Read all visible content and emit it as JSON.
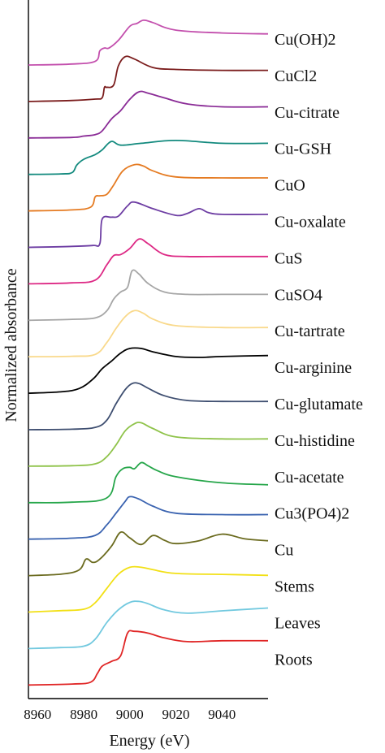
{
  "chart_data": {
    "type": "line",
    "title": "",
    "xlabel": "Energy (eV)",
    "ylabel": "Normalized absorbance",
    "xlim": [
      8956,
      9060
    ],
    "xticks": [
      8960,
      8980,
      9000,
      9020,
      9040
    ],
    "yticks": [],
    "grid": false,
    "legend": "labels at right end of each stacked trace",
    "series": [
      {
        "name": "Cu(OH)2",
        "color": "#c34fad",
        "baseline": 0.0,
        "x": [
          8956,
          8975,
          8985,
          8987,
          8989,
          8991,
          8995,
          9000,
          9003,
          9006,
          9010,
          9020,
          9040,
          9060
        ],
        "values": [
          0.0,
          0.02,
          0.08,
          0.3,
          0.36,
          0.36,
          0.52,
          0.82,
          0.88,
          0.95,
          0.9,
          0.74,
          0.68,
          0.66
        ]
      },
      {
        "name": "CuCl2",
        "color": "#7b1d1d",
        "baseline": 0.0,
        "x": [
          8956,
          8975,
          8985,
          8988,
          8989,
          8990,
          8993,
          8995,
          8998,
          9002,
          9010,
          9020,
          9040,
          9060
        ],
        "values": [
          0.0,
          0.02,
          0.05,
          0.08,
          0.3,
          0.3,
          0.35,
          0.75,
          0.95,
          0.9,
          0.72,
          0.68,
          0.66,
          0.66
        ]
      },
      {
        "name": "Cu-citrate",
        "color": "#8a2b96",
        "baseline": 0.0,
        "x": [
          8956,
          8975,
          8980,
          8985,
          8988,
          8992,
          8996,
          9000,
          9004,
          9008,
          9015,
          9025,
          9040,
          9060
        ],
        "values": [
          0.0,
          0.01,
          0.04,
          0.07,
          0.15,
          0.4,
          0.58,
          0.82,
          0.98,
          0.95,
          0.85,
          0.72,
          0.66,
          0.66
        ]
      },
      {
        "name": "Cu-GSH",
        "color": "#138a7e",
        "baseline": 0.0,
        "x": [
          8956,
          8970,
          8975,
          8977,
          8980,
          8985,
          8988,
          8992,
          8996,
          9005,
          9020,
          9040,
          9060
        ],
        "values": [
          0.0,
          0.01,
          0.04,
          0.2,
          0.32,
          0.42,
          0.52,
          0.7,
          0.62,
          0.66,
          0.72,
          0.66,
          0.66
        ]
      },
      {
        "name": "CuO",
        "color": "#e57b22",
        "baseline": 0.0,
        "x": [
          8956,
          8975,
          8983,
          8985,
          8987,
          8990,
          8993,
          8997,
          9002,
          9006,
          9010,
          9020,
          9040,
          9060
        ],
        "values": [
          0.0,
          0.02,
          0.08,
          0.3,
          0.32,
          0.35,
          0.55,
          0.85,
          0.98,
          0.95,
          0.85,
          0.72,
          0.7,
          0.7
        ]
      },
      {
        "name": "Cu-oxalate",
        "color": "#6d3da3",
        "baseline": 0.0,
        "x": [
          8956,
          8975,
          8984,
          8987,
          8988,
          8992,
          8995,
          8999,
          9002,
          9010,
          9020,
          9025,
          9030,
          9034,
          9040,
          9060
        ],
        "values": [
          0.0,
          0.02,
          0.04,
          0.08,
          0.6,
          0.64,
          0.66,
          0.88,
          0.96,
          0.82,
          0.68,
          0.72,
          0.82,
          0.74,
          0.7,
          0.7
        ]
      },
      {
        "name": "CuS",
        "color": "#dd2985",
        "baseline": 0.0,
        "x": [
          8956,
          8975,
          8985,
          8990,
          8993,
          8996,
          9000,
          9004,
          9008,
          9015,
          9025,
          9040,
          9060
        ],
        "values": [
          0.0,
          0.02,
          0.08,
          0.4,
          0.6,
          0.62,
          0.75,
          0.95,
          0.85,
          0.62,
          0.58,
          0.58,
          0.58
        ]
      },
      {
        "name": "CuSO4",
        "color": "#a6a6a6",
        "baseline": 0.0,
        "x": [
          8956,
          8975,
          8985,
          8990,
          8993,
          8996,
          8999,
          9001,
          9004,
          9008,
          9015,
          9025,
          9040,
          9060
        ],
        "values": [
          0.0,
          0.02,
          0.05,
          0.2,
          0.45,
          0.6,
          0.7,
          1.05,
          0.98,
          0.78,
          0.6,
          0.55,
          0.55,
          0.55
        ]
      },
      {
        "name": "Cu-tartrate",
        "color": "#f9d98b",
        "baseline": 0.0,
        "x": [
          8956,
          8975,
          8985,
          8990,
          8994,
          8998,
          9002,
          9006,
          9010,
          9020,
          9040,
          9060
        ],
        "values": [
          0.0,
          0.01,
          0.05,
          0.3,
          0.6,
          0.85,
          0.98,
          0.92,
          0.8,
          0.66,
          0.62,
          0.62
        ]
      },
      {
        "name": "Cu-arginine",
        "color": "#000000",
        "baseline": 0.0,
        "x": [
          8956,
          8970,
          8978,
          8984,
          8988,
          8992,
          8996,
          9000,
          9005,
          9010,
          9020,
          9030,
          9040,
          9060
        ],
        "values": [
          0.0,
          0.03,
          0.1,
          0.3,
          0.52,
          0.68,
          0.85,
          0.95,
          0.95,
          0.88,
          0.78,
          0.76,
          0.78,
          0.8
        ]
      },
      {
        "name": "Cu-glutamate",
        "color": "#3e4e70",
        "baseline": 0.0,
        "x": [
          8956,
          8975,
          8985,
          8990,
          8994,
          8998,
          9001,
          9004,
          9008,
          9015,
          9025,
          9040,
          9060
        ],
        "values": [
          0.0,
          0.01,
          0.05,
          0.2,
          0.55,
          0.85,
          0.98,
          0.98,
          0.88,
          0.72,
          0.62,
          0.6,
          0.6
        ]
      },
      {
        "name": "Cu-histidine",
        "color": "#8fc34a",
        "baseline": 0.0,
        "x": [
          8956,
          8975,
          8985,
          8990,
          8994,
          8998,
          9002,
          9005,
          9010,
          9020,
          9040,
          9060
        ],
        "values": [
          0.0,
          0.01,
          0.05,
          0.2,
          0.45,
          0.75,
          0.9,
          0.92,
          0.8,
          0.62,
          0.58,
          0.58
        ]
      },
      {
        "name": "Cu-acetate",
        "color": "#26a64a",
        "baseline": 0.0,
        "x": [
          8956,
          8975,
          8990,
          8994,
          8997,
          9000,
          9002,
          9005,
          9008,
          9012,
          9020,
          9040,
          9060
        ],
        "values": [
          0.0,
          0.01,
          0.1,
          0.55,
          0.72,
          0.75,
          0.72,
          0.85,
          0.78,
          0.68,
          0.55,
          0.42,
          0.38
        ]
      },
      {
        "name": "Cu3(PO4)2",
        "color": "#3a63b0",
        "baseline": 0.0,
        "x": [
          8956,
          8975,
          8985,
          8990,
          8994,
          8998,
          9000,
          9004,
          9010,
          9020,
          9040,
          9060
        ],
        "values": [
          0.0,
          0.02,
          0.08,
          0.3,
          0.55,
          0.8,
          0.9,
          0.85,
          0.7,
          0.55,
          0.52,
          0.52
        ]
      },
      {
        "name": "Cu",
        "color": "#6b6b1f",
        "baseline": 0.0,
        "x": [
          8956,
          8970,
          8978,
          8981,
          8984,
          8987,
          8992,
          8996,
          9000,
          9005,
          9010,
          9015,
          9020,
          9030,
          9040,
          9050,
          9060
        ],
        "values": [
          0.0,
          0.03,
          0.12,
          0.35,
          0.28,
          0.35,
          0.62,
          0.92,
          0.8,
          0.66,
          0.85,
          0.75,
          0.68,
          0.74,
          0.88,
          0.78,
          0.74
        ]
      },
      {
        "name": "Stems",
        "color": "#f2e016",
        "baseline": 0.0,
        "x": [
          8956,
          8970,
          8980,
          8985,
          8990,
          8995,
          9000,
          9005,
          9010,
          9020,
          9040,
          9060
        ],
        "values": [
          0.0,
          0.03,
          0.06,
          0.2,
          0.5,
          0.8,
          0.95,
          0.95,
          0.9,
          0.82,
          0.8,
          0.78
        ]
      },
      {
        "name": "Leaves",
        "color": "#72c9df",
        "baseline": 0.0,
        "x": [
          8956,
          8970,
          8980,
          8985,
          8990,
          8995,
          9000,
          9004,
          9008,
          9015,
          9025,
          9040,
          9060
        ],
        "values": [
          0.0,
          0.02,
          0.05,
          0.2,
          0.55,
          0.82,
          0.98,
          1.0,
          0.95,
          0.82,
          0.75,
          0.8,
          0.86
        ]
      },
      {
        "name": "Roots",
        "color": "#e02626",
        "baseline": 0.0,
        "x": [
          8956,
          8975,
          8983,
          8986,
          8988,
          8992,
          8996,
          8999,
          9002,
          9008,
          9015,
          9025,
          9040,
          9060
        ],
        "values": [
          0.0,
          0.02,
          0.06,
          0.25,
          0.4,
          0.5,
          0.62,
          1.1,
          1.14,
          1.1,
          1.0,
          0.92,
          0.94,
          0.94
        ]
      }
    ]
  }
}
